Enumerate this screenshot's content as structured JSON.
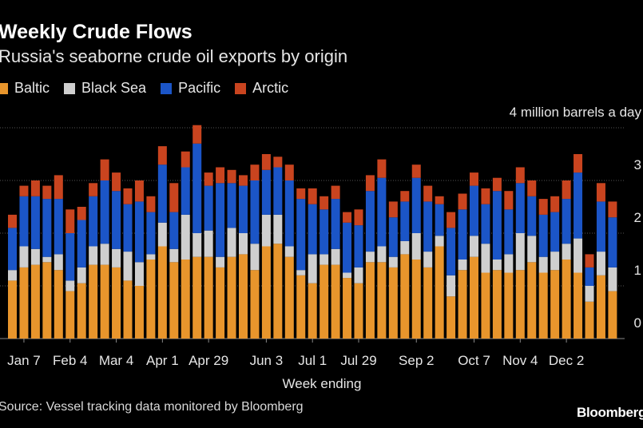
{
  "colors": {
    "baltic": "#e8952c",
    "black_sea": "#cfcfcf",
    "pacific": "#1b55c7",
    "arctic": "#c9441f",
    "background": "#000000",
    "grid": "#555555",
    "text": "#e6e6e6"
  },
  "header": {
    "title": "Weekly Crude Flows",
    "subtitle": "Russia's seaborne crude oil exports by origin"
  },
  "footer": {
    "source": "Source: Vessel tracking data monitored by Bloomberg",
    "logo": "Bloomberg"
  },
  "chart_data": {
    "type": "bar",
    "stacked": true,
    "title": "Weekly Crude Flows",
    "subtitle": "Russia's seaborne crude oil exports by origin",
    "xlabel": "Week ending",
    "unit_label": "4 million barrels a day",
    "ylim": [
      0,
      4
    ],
    "yticks": [
      0,
      1,
      2,
      3
    ],
    "grid": true,
    "legend_position": "top-left",
    "x_tick_labels": [
      "Jan 7",
      "Feb 4",
      "Mar 4",
      "Apr 1",
      "Apr 29",
      "Jun 3",
      "Jul 1",
      "Jul 29",
      "Sep 2",
      "Oct 7",
      "Nov 4",
      "Dec 2"
    ],
    "x_tick_bar_index": [
      1,
      5,
      9,
      13,
      17,
      22,
      26,
      30,
      35,
      40,
      44,
      48
    ],
    "series": [
      {
        "name": "Baltic",
        "values": [
          1.1,
          1.35,
          1.4,
          1.45,
          1.3,
          0.9,
          1.05,
          1.4,
          1.4,
          1.35,
          1.1,
          1.0,
          1.5,
          1.75,
          1.45,
          1.5,
          1.55,
          1.55,
          1.35,
          1.55,
          1.6,
          1.3,
          1.75,
          1.8,
          1.55,
          1.2,
          1.05,
          1.4,
          1.4,
          1.15,
          1.05,
          1.45,
          1.45,
          1.35,
          1.6,
          1.5,
          1.35,
          1.75,
          0.8,
          1.3,
          1.55,
          1.25,
          1.3,
          1.25,
          1.3,
          1.45,
          1.25,
          1.3,
          1.5,
          1.25,
          0.7,
          1.2,
          0.9
        ]
      },
      {
        "name": "Black Sea",
        "values": [
          0.2,
          0.4,
          0.3,
          0.1,
          0.3,
          0.2,
          0.3,
          0.35,
          0.4,
          0.35,
          0.55,
          0.45,
          0.1,
          0.45,
          0.25,
          0.85,
          0.45,
          0.5,
          0.2,
          0.55,
          0.4,
          0.5,
          0.6,
          0.55,
          0.2,
          0.1,
          0.55,
          0.2,
          0.3,
          0.1,
          0.3,
          0.2,
          0.3,
          0.2,
          0.25,
          0.5,
          0.3,
          0.2,
          0.4,
          0.2,
          0.4,
          0.55,
          0.2,
          0.35,
          0.7,
          0.5,
          0.3,
          0.35,
          0.3,
          0.65,
          0.3,
          0.45,
          0.45
        ]
      },
      {
        "name": "Pacific",
        "values": [
          0.8,
          0.95,
          1.0,
          1.1,
          1.05,
          0.9,
          0.9,
          0.95,
          1.2,
          1.1,
          0.9,
          1.15,
          0.8,
          1.1,
          0.7,
          0.9,
          1.7,
          0.85,
          1.4,
          0.85,
          0.9,
          1.2,
          0.85,
          0.9,
          1.25,
          1.35,
          0.95,
          0.85,
          0.95,
          0.95,
          0.8,
          1.15,
          1.3,
          0.75,
          0.75,
          1.05,
          0.95,
          0.6,
          0.9,
          0.95,
          0.95,
          0.75,
          1.3,
          0.85,
          0.95,
          0.75,
          0.8,
          0.75,
          0.85,
          1.25,
          0.35,
          0.95,
          0.95
        ]
      },
      {
        "name": "Arctic",
        "values": [
          0.25,
          0.2,
          0.3,
          0.25,
          0.45,
          0.45,
          0.25,
          0.25,
          0.4,
          0.35,
          0.3,
          0.4,
          0.3,
          0.35,
          0.55,
          0.3,
          0.35,
          0.25,
          0.3,
          0.25,
          0.2,
          0.3,
          0.3,
          0.2,
          0.3,
          0.2,
          0.3,
          0.25,
          0.25,
          0.2,
          0.3,
          0.3,
          0.35,
          0.3,
          0.2,
          0.25,
          0.3,
          0.15,
          0.3,
          0.3,
          0.25,
          0.3,
          0.25,
          0.35,
          0.3,
          0.3,
          0.3,
          0.3,
          0.35,
          0.35,
          0.25,
          0.35,
          0.3
        ]
      }
    ]
  }
}
